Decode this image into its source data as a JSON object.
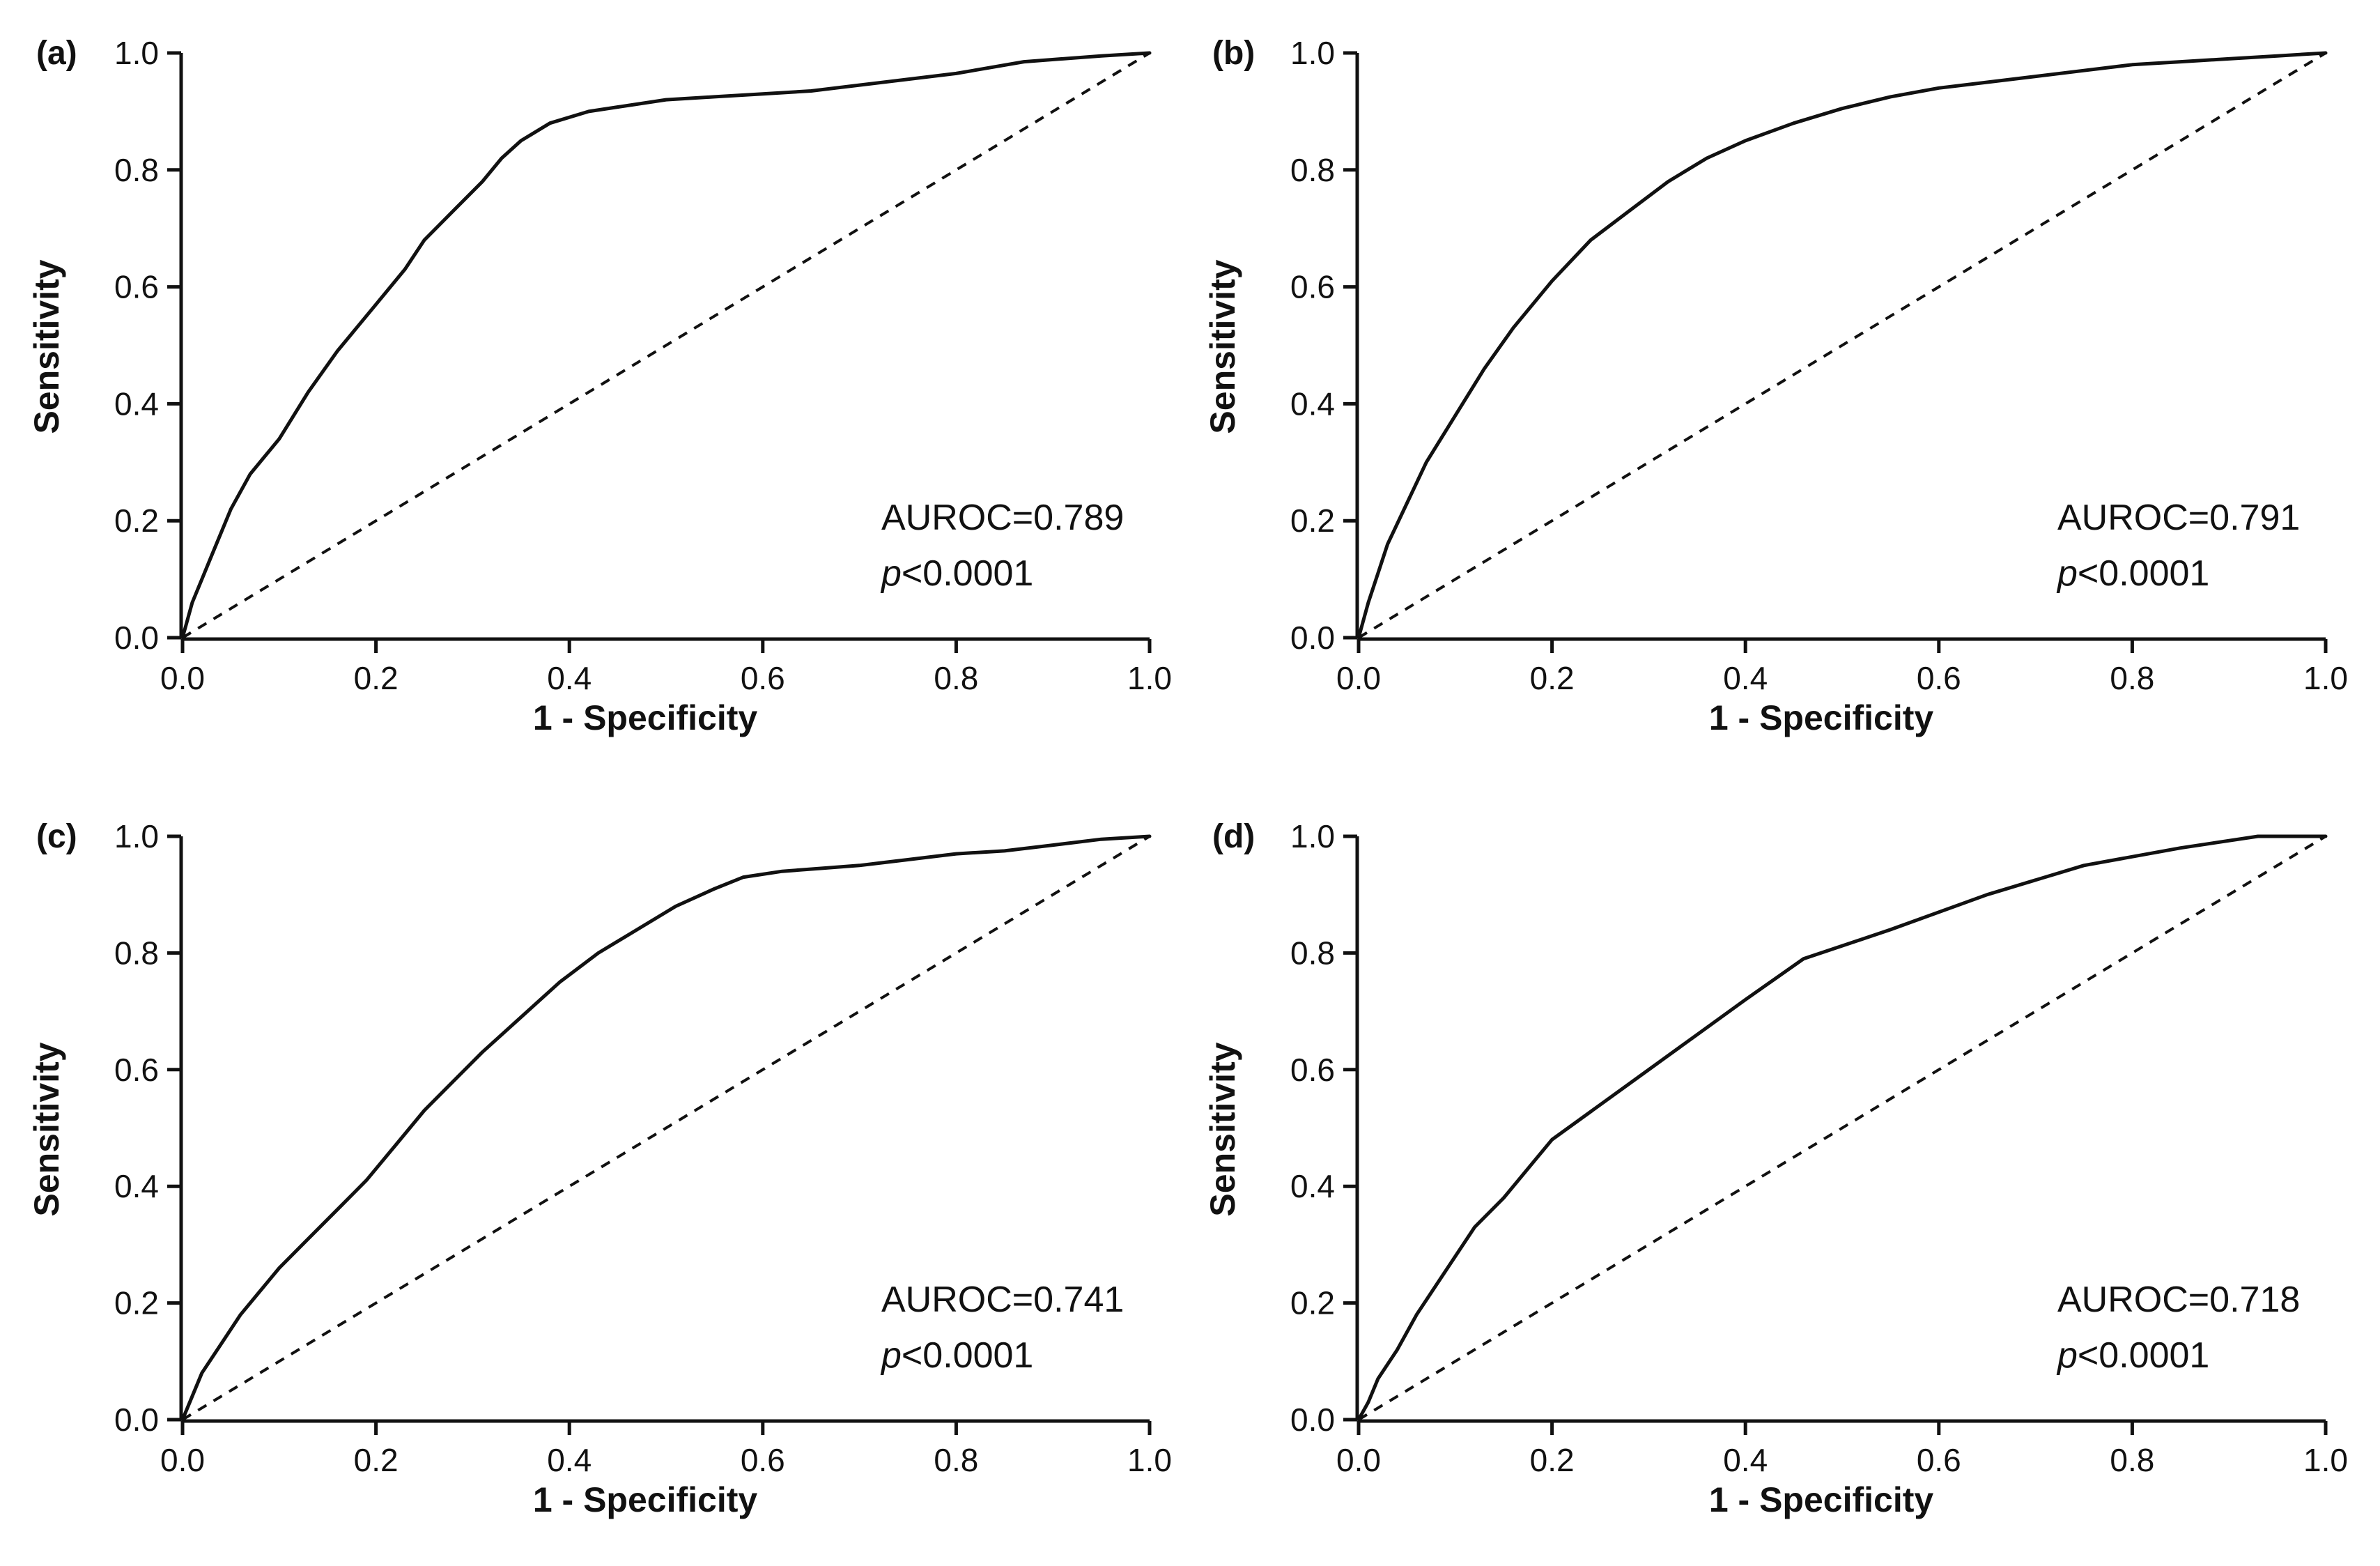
{
  "chart_data": [
    {
      "type": "line",
      "panel_label": "(a)",
      "xlabel": "1 - Specificity",
      "ylabel": "Sensitivity",
      "xlim": [
        0,
        1
      ],
      "ylim": [
        0,
        1
      ],
      "xticks": [
        "0.0",
        "0.2",
        "0.4",
        "0.6",
        "0.8",
        "1.0"
      ],
      "yticks": [
        "0.0",
        "0.2",
        "0.4",
        "0.6",
        "0.8",
        "1.0"
      ],
      "annotation": {
        "auroc": "AUROC=0.789",
        "p_prefix": "p",
        "p_value": "<0.0001"
      },
      "series": [
        {
          "name": "ROC",
          "x": [
            0,
            0.01,
            0.02,
            0.03,
            0.04,
            0.05,
            0.07,
            0.1,
            0.13,
            0.16,
            0.2,
            0.23,
            0.25,
            0.28,
            0.31,
            0.33,
            0.35,
            0.38,
            0.42,
            0.46,
            0.5,
            0.55,
            0.6,
            0.65,
            0.7,
            0.8,
            0.87,
            0.95,
            1.0
          ],
          "y": [
            0,
            0.06,
            0.1,
            0.14,
            0.18,
            0.22,
            0.28,
            0.34,
            0.42,
            0.49,
            0.57,
            0.63,
            0.68,
            0.73,
            0.78,
            0.82,
            0.85,
            0.88,
            0.9,
            0.91,
            0.92,
            0.925,
            0.93,
            0.935,
            0.945,
            0.965,
            0.985,
            0.995,
            1.0
          ]
        },
        {
          "name": "Reference",
          "x": [
            0,
            1
          ],
          "y": [
            0,
            1
          ]
        }
      ]
    },
    {
      "type": "line",
      "panel_label": "(b)",
      "xlabel": "1 - Specificity",
      "ylabel": "Sensitivity",
      "xlim": [
        0,
        1
      ],
      "ylim": [
        0,
        1
      ],
      "xticks": [
        "0.0",
        "0.2",
        "0.4",
        "0.6",
        "0.8",
        "1.0"
      ],
      "yticks": [
        "0.0",
        "0.2",
        "0.4",
        "0.6",
        "0.8",
        "1.0"
      ],
      "annotation": {
        "auroc": "AUROC=0.791",
        "p_prefix": "p",
        "p_value": "<0.0001"
      },
      "series": [
        {
          "name": "ROC",
          "x": [
            0,
            0.01,
            0.02,
            0.03,
            0.05,
            0.07,
            0.1,
            0.13,
            0.16,
            0.2,
            0.24,
            0.28,
            0.32,
            0.36,
            0.4,
            0.45,
            0.5,
            0.55,
            0.6,
            0.65,
            0.7,
            0.75,
            0.8,
            0.85,
            0.9,
            0.95,
            1.0
          ],
          "y": [
            0,
            0.06,
            0.11,
            0.16,
            0.23,
            0.3,
            0.38,
            0.46,
            0.53,
            0.61,
            0.68,
            0.73,
            0.78,
            0.82,
            0.85,
            0.88,
            0.905,
            0.925,
            0.94,
            0.95,
            0.96,
            0.97,
            0.98,
            0.985,
            0.99,
            0.995,
            1.0
          ]
        },
        {
          "name": "Reference",
          "x": [
            0,
            1
          ],
          "y": [
            0,
            1
          ]
        }
      ]
    },
    {
      "type": "line",
      "panel_label": "(c)",
      "xlabel": "1 - Specificity",
      "ylabel": "Sensitivity",
      "xlim": [
        0,
        1
      ],
      "ylim": [
        0,
        1
      ],
      "xticks": [
        "0.0",
        "0.2",
        "0.4",
        "0.6",
        "0.8",
        "1.0"
      ],
      "yticks": [
        "0.0",
        "0.2",
        "0.4",
        "0.6",
        "0.8",
        "1.0"
      ],
      "annotation": {
        "auroc": "AUROC=0.741",
        "p_prefix": "p",
        "p_value": "<0.0001"
      },
      "series": [
        {
          "name": "ROC",
          "x": [
            0,
            0.01,
            0.02,
            0.04,
            0.06,
            0.08,
            0.1,
            0.13,
            0.16,
            0.19,
            0.22,
            0.25,
            0.28,
            0.31,
            0.35,
            0.39,
            0.43,
            0.47,
            0.51,
            0.55,
            0.58,
            0.62,
            0.66,
            0.7,
            0.75,
            0.8,
            0.85,
            0.9,
            0.95,
            1.0
          ],
          "y": [
            0,
            0.04,
            0.08,
            0.13,
            0.18,
            0.22,
            0.26,
            0.31,
            0.36,
            0.41,
            0.47,
            0.53,
            0.58,
            0.63,
            0.69,
            0.75,
            0.8,
            0.84,
            0.88,
            0.91,
            0.93,
            0.94,
            0.945,
            0.95,
            0.96,
            0.97,
            0.975,
            0.985,
            0.995,
            1.0
          ]
        },
        {
          "name": "Reference",
          "x": [
            0,
            1
          ],
          "y": [
            0,
            1
          ]
        }
      ]
    },
    {
      "type": "line",
      "panel_label": "(d)",
      "xlabel": "1 - Specificity",
      "ylabel": "Sensitivity",
      "xlim": [
        0,
        1
      ],
      "ylim": [
        0,
        1
      ],
      "xticks": [
        "0.0",
        "0.2",
        "0.4",
        "0.6",
        "0.8",
        "1.0"
      ],
      "yticks": [
        "0.0",
        "0.2",
        "0.4",
        "0.6",
        "0.8",
        "1.0"
      ],
      "annotation": {
        "auroc": "AUROC=0.718",
        "p_prefix": "p",
        "p_value": "<0.0001"
      },
      "series": [
        {
          "name": "ROC",
          "x": [
            0,
            0.01,
            0.02,
            0.04,
            0.06,
            0.08,
            0.1,
            0.12,
            0.15,
            0.18,
            0.2,
            0.25,
            0.3,
            0.35,
            0.4,
            0.46,
            0.55,
            0.65,
            0.75,
            0.85,
            0.93,
            1.0
          ],
          "y": [
            0,
            0.03,
            0.07,
            0.12,
            0.18,
            0.23,
            0.28,
            0.33,
            0.38,
            0.44,
            0.48,
            0.54,
            0.6,
            0.66,
            0.72,
            0.79,
            0.84,
            0.9,
            0.95,
            0.98,
            1.0,
            1.0
          ]
        },
        {
          "name": "Reference",
          "x": [
            0,
            1
          ],
          "y": [
            0,
            1
          ]
        }
      ]
    }
  ]
}
